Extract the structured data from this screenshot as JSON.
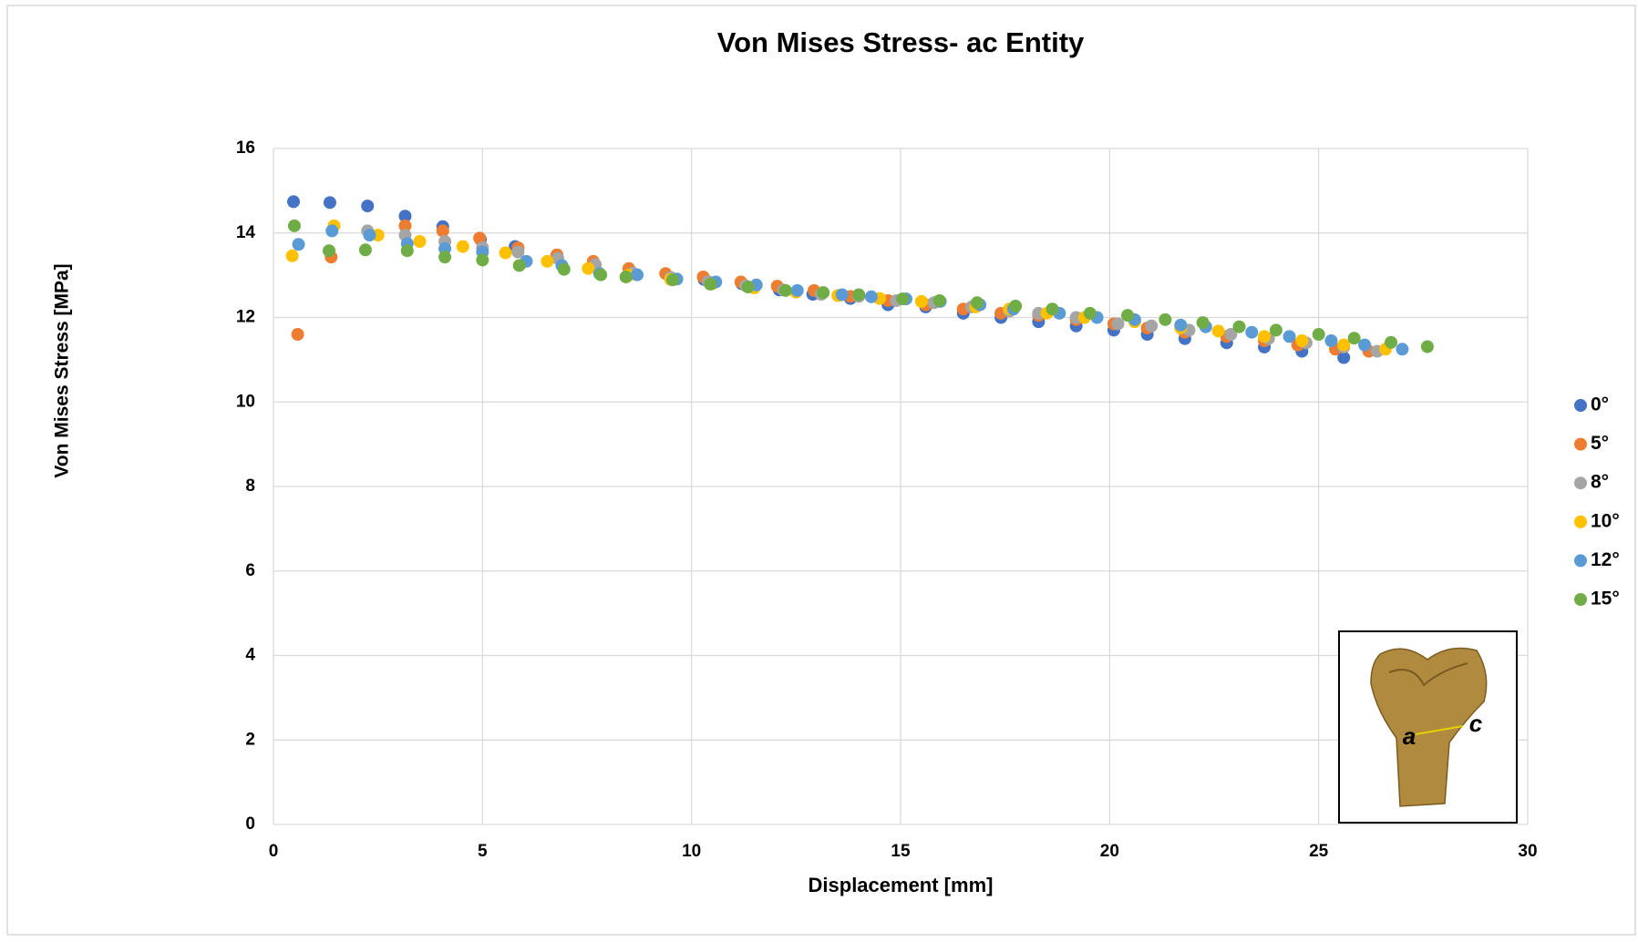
{
  "chart_data": {
    "type": "scatter",
    "title": "Von Mises Stress- ac Entity",
    "x_label": "Displacement [mm]",
    "y_label": "Von Mises Stress [MPa]",
    "xlim": [
      0,
      30
    ],
    "xticks": [
      0,
      5,
      10,
      15,
      20,
      25,
      30
    ],
    "ylim": [
      0,
      16
    ],
    "yticks": [
      0,
      2,
      4,
      6,
      8,
      10,
      12,
      14,
      16
    ],
    "grid": true,
    "legend": "right",
    "annotations": [
      "a",
      "c"
    ],
    "series": [
      {
        "name": "0°",
        "color": "#4472c4",
        "x": [
          0.48,
          1.35,
          2.25,
          3.15,
          4.05,
          4.95,
          5.78,
          6.78,
          10.3,
          11.2,
          12.1,
          12.9,
          13.8,
          14.7,
          15.6,
          16.5,
          17.4,
          18.3,
          19.2,
          20.1,
          20.9,
          21.8,
          22.8,
          23.7,
          24.6,
          25.6
        ],
        "values": [
          14.74,
          14.72,
          14.64,
          14.4,
          14.15,
          13.85,
          13.68,
          13.48,
          12.9,
          12.8,
          12.65,
          12.55,
          12.45,
          12.3,
          12.25,
          12.1,
          12.0,
          11.9,
          11.8,
          11.7,
          11.6,
          11.5,
          11.4,
          11.3,
          11.2,
          11.05
        ]
      },
      {
        "name": "5°",
        "color": "#ed7d31",
        "x": [
          0.58,
          1.38,
          3.15,
          4.05,
          4.93,
          5.85,
          6.78,
          7.65,
          8.5,
          9.38,
          10.28,
          11.18,
          12.05,
          12.93,
          13.8,
          14.7,
          15.6,
          16.5,
          17.4,
          18.3,
          19.2,
          20.1,
          20.9,
          21.8,
          22.8,
          23.7,
          24.5,
          25.4,
          26.2
        ],
        "values": [
          11.6,
          13.43,
          14.17,
          14.05,
          13.88,
          13.65,
          13.48,
          13.33,
          13.16,
          13.04,
          12.96,
          12.84,
          12.74,
          12.64,
          12.5,
          12.4,
          12.3,
          12.2,
          12.1,
          12.05,
          11.95,
          11.85,
          11.75,
          11.65,
          11.55,
          11.45,
          11.35,
          11.25,
          11.2
        ]
      },
      {
        "name": "8°",
        "color": "#a5a5a5",
        "x": [
          2.25,
          3.15,
          4.1,
          5.0,
          5.85,
          6.8,
          7.7,
          8.6,
          9.5,
          10.4,
          11.3,
          12.2,
          13.1,
          14.0,
          14.9,
          15.8,
          16.7,
          17.6,
          18.3,
          19.2,
          20.2,
          21.0,
          21.9,
          22.9,
          23.8,
          24.7,
          25.6,
          26.4
        ],
        "values": [
          14.05,
          13.95,
          13.8,
          13.65,
          13.55,
          13.4,
          13.25,
          13.05,
          12.95,
          12.85,
          12.75,
          12.65,
          12.55,
          12.5,
          12.4,
          12.35,
          12.25,
          12.15,
          12.1,
          12.0,
          11.85,
          11.8,
          11.7,
          11.6,
          11.5,
          11.4,
          11.3,
          11.2
        ]
      },
      {
        "name": "10°",
        "color": "#ffc000",
        "x": [
          0.45,
          1.45,
          2.5,
          3.5,
          4.53,
          5.55,
          6.55,
          7.53,
          8.5,
          9.5,
          10.5,
          11.5,
          12.5,
          13.5,
          14.5,
          15.5,
          16.8,
          17.6,
          18.5,
          19.4,
          20.6,
          21.7,
          22.6,
          23.7,
          24.6,
          25.6,
          26.6
        ],
        "values": [
          13.46,
          14.17,
          13.95,
          13.8,
          13.68,
          13.53,
          13.33,
          13.16,
          13.0,
          12.9,
          12.8,
          12.7,
          12.6,
          12.52,
          12.45,
          12.38,
          12.25,
          12.2,
          12.1,
          12.0,
          11.9,
          11.75,
          11.68,
          11.55,
          11.45,
          11.35,
          11.25
        ]
      },
      {
        "name": "12°",
        "color": "#5b9bd5",
        "x": [
          0.6,
          1.4,
          2.3,
          3.2,
          4.1,
          5.0,
          6.05,
          6.9,
          7.8,
          8.7,
          9.65,
          10.58,
          11.55,
          12.53,
          13.6,
          14.3,
          15.13,
          15.95,
          16.9,
          17.7,
          18.8,
          19.7,
          20.6,
          21.7,
          22.3,
          23.4,
          24.3,
          25.3,
          26.1,
          27.0
        ],
        "values": [
          13.73,
          14.05,
          13.95,
          13.75,
          13.63,
          13.55,
          13.33,
          13.23,
          13.04,
          13.01,
          12.91,
          12.84,
          12.77,
          12.64,
          12.54,
          12.49,
          12.44,
          12.38,
          12.3,
          12.2,
          12.1,
          12.0,
          11.95,
          11.82,
          11.78,
          11.65,
          11.55,
          11.45,
          11.35,
          11.25
        ]
      },
      {
        "name": "15°",
        "color": "#70ad47",
        "x": [
          0.5,
          1.33,
          2.2,
          3.2,
          4.1,
          5.0,
          5.88,
          6.95,
          7.83,
          8.43,
          9.55,
          10.45,
          11.35,
          12.25,
          13.15,
          14.0,
          15.05,
          15.93,
          16.83,
          17.75,
          18.63,
          19.53,
          20.43,
          21.33,
          22.23,
          23.1,
          23.98,
          25.0,
          25.85,
          26.73,
          27.6
        ],
        "values": [
          14.17,
          13.58,
          13.6,
          13.58,
          13.43,
          13.36,
          13.23,
          13.14,
          13.01,
          12.96,
          12.89,
          12.79,
          12.72,
          12.64,
          12.59,
          12.54,
          12.44,
          12.4,
          12.35,
          12.27,
          12.2,
          12.1,
          12.05,
          11.95,
          11.88,
          11.78,
          11.7,
          11.6,
          11.51,
          11.41,
          11.31
        ]
      }
    ]
  }
}
